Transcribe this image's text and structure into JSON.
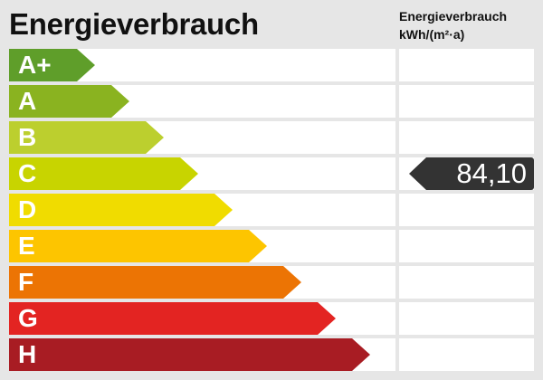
{
  "header": {
    "title": "Energieverbrauch",
    "column_title": "Energieverbrauch",
    "column_unit": "kWh/(m²·a)"
  },
  "classes": [
    {
      "label": "A+",
      "color": "#5f9e2a"
    },
    {
      "label": "A",
      "color": "#8ab320"
    },
    {
      "label": "B",
      "color": "#bccf2e"
    },
    {
      "label": "C",
      "color": "#c8d400"
    },
    {
      "label": "D",
      "color": "#f0dc00"
    },
    {
      "label": "E",
      "color": "#fdc500"
    },
    {
      "label": "F",
      "color": "#ec7404"
    },
    {
      "label": "G",
      "color": "#e32422"
    },
    {
      "label": "H",
      "color": "#a81c23"
    }
  ],
  "indicator": {
    "value": "84,10",
    "class_index": 3,
    "color": "#333333"
  }
}
